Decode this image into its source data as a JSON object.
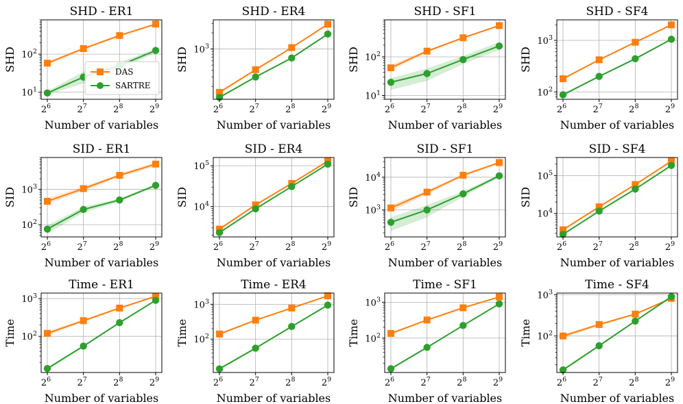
{
  "legend": {
    "placement": "center-right",
    "entries": [
      {
        "name": "DAS",
        "color": "#ff7f0e",
        "marker": "square"
      },
      {
        "name": "SARTRE",
        "color": "#2ca02c",
        "marker": "circle"
      }
    ]
  },
  "chart_data": [
    {
      "id": "shd-er1",
      "type": "line",
      "title": "SHD - ER1",
      "xlabel": "Number of variables",
      "ylabel": "SHD",
      "yscale": "log",
      "x": [
        6,
        7,
        8,
        9
      ],
      "x_tick_labels": [
        "2^6",
        "2^7",
        "2^8",
        "2^9"
      ],
      "ylim": [
        6.5,
        800
      ],
      "y_ticks": [
        {
          "exp": 1,
          "label": "10^1"
        },
        {
          "exp": 2,
          "label": "10^2"
        }
      ],
      "grid": true,
      "series": [
        {
          "name": "DAS",
          "values": [
            58,
            140,
            310,
            620
          ],
          "band_lower": [
            52,
            130,
            290,
            590
          ],
          "band_upper": [
            64,
            150,
            330,
            650
          ]
        },
        {
          "name": "SARTRE",
          "values": [
            9.5,
            25,
            50,
            125
          ],
          "band_lower": [
            8.5,
            17,
            40,
            110
          ],
          "band_upper": [
            10.5,
            35,
            60,
            140
          ]
        }
      ],
      "legend": true
    },
    {
      "id": "shd-er4",
      "type": "line",
      "title": "SHD - ER4",
      "xlabel": "Number of variables",
      "ylabel": "SHD",
      "yscale": "log",
      "x": [
        6,
        7,
        8,
        9
      ],
      "x_tick_labels": [
        "2^6",
        "2^7",
        "2^8",
        "2^9"
      ],
      "ylim": [
        115,
        3500
      ],
      "y_ticks": [
        {
          "exp": 3,
          "label": "10^3"
        }
      ],
      "grid": true,
      "series": [
        {
          "name": "DAS",
          "values": [
            155,
            410,
            1060,
            2900
          ],
          "band_lower": [
            148,
            395,
            1030,
            2850
          ],
          "band_upper": [
            162,
            425,
            1090,
            2950
          ]
        },
        {
          "name": "SARTRE",
          "values": [
            125,
            300,
            680,
            1900
          ],
          "band_lower": [
            120,
            290,
            665,
            1870
          ],
          "band_upper": [
            130,
            310,
            695,
            1930
          ]
        }
      ]
    },
    {
      "id": "shd-sf1",
      "type": "line",
      "title": "SHD - SF1",
      "xlabel": "Number of variables",
      "ylabel": "SHD",
      "yscale": "log",
      "x": [
        6,
        7,
        8,
        9
      ],
      "x_tick_labels": [
        "2^6",
        "2^7",
        "2^8",
        "2^9"
      ],
      "ylim": [
        8,
        900
      ],
      "y_ticks": [
        {
          "exp": 1,
          "label": "10^1"
        },
        {
          "exp": 2,
          "label": "10^2"
        }
      ],
      "grid": true,
      "series": [
        {
          "name": "DAS",
          "values": [
            52,
            140,
            310,
            640
          ],
          "band_lower": [
            44,
            130,
            295,
            615
          ],
          "band_upper": [
            62,
            150,
            325,
            665
          ]
        },
        {
          "name": "SARTRE",
          "values": [
            22,
            37,
            85,
            190
          ],
          "band_lower": [
            14,
            24,
            65,
            150
          ],
          "band_upper": [
            28,
            50,
            105,
            240
          ]
        }
      ]
    },
    {
      "id": "shd-sf4",
      "type": "line",
      "title": "SHD - SF4",
      "xlabel": "Number of variables",
      "ylabel": "SHD",
      "yscale": "log",
      "x": [
        6,
        7,
        8,
        9
      ],
      "x_tick_labels": [
        "2^6",
        "2^7",
        "2^8",
        "2^9"
      ],
      "ylim": [
        72,
        2500
      ],
      "y_ticks": [
        {
          "exp": 2,
          "label": "10^2"
        },
        {
          "exp": 3,
          "label": "10^3"
        }
      ],
      "grid": true,
      "series": [
        {
          "name": "DAS",
          "values": [
            180,
            420,
            920,
            2000
          ],
          "band_lower": [
            172,
            405,
            895,
            1960
          ],
          "band_upper": [
            188,
            435,
            945,
            2040
          ]
        },
        {
          "name": "SARTRE",
          "values": [
            88,
            200,
            440,
            1050
          ],
          "band_lower": [
            84,
            192,
            425,
            1020
          ],
          "band_upper": [
            92,
            208,
            455,
            1080
          ]
        }
      ]
    },
    {
      "id": "sid-er1",
      "type": "line",
      "title": "SID - ER1",
      "xlabel": "Number of variables",
      "ylabel": "SID",
      "yscale": "log",
      "x": [
        6,
        7,
        8,
        9
      ],
      "x_tick_labels": [
        "2^6",
        "2^7",
        "2^8",
        "2^9"
      ],
      "ylim": [
        45,
        8000
      ],
      "y_ticks": [
        {
          "exp": 2,
          "label": "10^2"
        },
        {
          "exp": 3,
          "label": "10^3"
        }
      ],
      "grid": true,
      "series": [
        {
          "name": "DAS",
          "values": [
            460,
            1050,
            2500,
            5200
          ],
          "band_lower": [
            380,
            920,
            2250,
            4500
          ],
          "band_upper": [
            560,
            1200,
            2800,
            6000
          ]
        },
        {
          "name": "SARTRE",
          "values": [
            75,
            270,
            500,
            1300
          ],
          "band_lower": [
            55,
            220,
            450,
            1200
          ],
          "band_upper": [
            95,
            320,
            550,
            1400
          ]
        }
      ]
    },
    {
      "id": "sid-er4",
      "type": "line",
      "title": "SID - ER4",
      "xlabel": "Number of variables",
      "ylabel": "SID",
      "yscale": "log",
      "x": [
        6,
        7,
        8,
        9
      ],
      "x_tick_labels": [
        "2^6",
        "2^7",
        "2^8",
        "2^9"
      ],
      "ylim": [
        1800,
        160000
      ],
      "y_ticks": [
        {
          "exp": 4,
          "label": "10^4"
        },
        {
          "exp": 5,
          "label": "10^5"
        }
      ],
      "grid": true,
      "series": [
        {
          "name": "DAS",
          "values": [
            2800,
            11000,
            37000,
            130000
          ],
          "band_lower": [
            2600,
            10500,
            35500,
            126000
          ],
          "band_upper": [
            3000,
            11500,
            38500,
            134000
          ]
        },
        {
          "name": "SARTRE",
          "values": [
            2300,
            8800,
            31000,
            110000
          ],
          "band_lower": [
            2150,
            8500,
            30000,
            107000
          ],
          "band_upper": [
            2450,
            9100,
            32000,
            113000
          ]
        }
      ]
    },
    {
      "id": "sid-sf1",
      "type": "line",
      "title": "SID - SF1",
      "xlabel": "Number of variables",
      "ylabel": "SID",
      "yscale": "log",
      "x": [
        6,
        7,
        8,
        9
      ],
      "x_tick_labels": [
        "2^6",
        "2^7",
        "2^8",
        "2^9"
      ],
      "ylim": [
        150,
        40000
      ],
      "y_ticks": [
        {
          "exp": 3,
          "label": "10^3"
        },
        {
          "exp": 4,
          "label": "10^4"
        }
      ],
      "grid": true,
      "series": [
        {
          "name": "DAS",
          "values": [
            1150,
            3500,
            11500,
            28000
          ],
          "band_lower": [
            900,
            3000,
            10500,
            26000
          ],
          "band_upper": [
            1400,
            4000,
            12500,
            30000
          ]
        },
        {
          "name": "SARTRE",
          "values": [
            420,
            1000,
            3100,
            11000
          ],
          "band_lower": [
            230,
            600,
            2500,
            10000
          ],
          "band_upper": [
            600,
            1400,
            3700,
            12000
          ]
        }
      ]
    },
    {
      "id": "sid-sf4",
      "type": "line",
      "title": "SID - SF4",
      "xlabel": "Number of variables",
      "ylabel": "SID",
      "yscale": "log",
      "x": [
        6,
        7,
        8,
        9
      ],
      "x_tick_labels": [
        "2^6",
        "2^7",
        "2^8",
        "2^9"
      ],
      "ylim": [
        2400,
        300000
      ],
      "y_ticks": [
        {
          "exp": 4,
          "label": "10^4"
        },
        {
          "exp": 5,
          "label": "10^5"
        }
      ],
      "grid": true,
      "series": [
        {
          "name": "DAS",
          "values": [
            3700,
            15000,
            58000,
            240000
          ],
          "band_lower": [
            3500,
            14400,
            56000,
            233000
          ],
          "band_upper": [
            3900,
            15600,
            60000,
            247000
          ]
        },
        {
          "name": "SARTRE",
          "values": [
            2800,
            11500,
            44000,
            185000
          ],
          "band_lower": [
            2650,
            11100,
            42500,
            180000
          ],
          "band_upper": [
            2950,
            11900,
            45500,
            190000
          ]
        }
      ]
    },
    {
      "id": "time-er1",
      "type": "line",
      "title": "Time - ER1",
      "xlabel": "Number of variables",
      "ylabel": "Time",
      "yscale": "log",
      "x": [
        6,
        7,
        8,
        9
      ],
      "x_tick_labels": [
        "2^6",
        "2^7",
        "2^8",
        "2^9"
      ],
      "ylim": [
        11,
        1400
      ],
      "y_ticks": [
        {
          "exp": 2,
          "label": "10^2"
        },
        {
          "exp": 3,
          "label": "10^3"
        }
      ],
      "grid": true,
      "series": [
        {
          "name": "DAS",
          "values": [
            120,
            260,
            560,
            1150
          ],
          "band_lower": [
            105,
            240,
            530,
            1100
          ],
          "band_upper": [
            135,
            280,
            590,
            1200
          ]
        },
        {
          "name": "SARTRE",
          "values": [
            14,
            55,
            230,
            900
          ],
          "band_lower": [
            13,
            52,
            220,
            870
          ],
          "band_upper": [
            15,
            58,
            240,
            930
          ]
        }
      ]
    },
    {
      "id": "time-er4",
      "type": "line",
      "title": "Time - ER4",
      "xlabel": "Number of variables",
      "ylabel": "Time",
      "yscale": "log",
      "x": [
        6,
        7,
        8,
        9
      ],
      "x_tick_labels": [
        "2^6",
        "2^7",
        "2^8",
        "2^9"
      ],
      "ylim": [
        11,
        2100
      ],
      "y_ticks": [
        {
          "exp": 2,
          "label": "10^2"
        },
        {
          "exp": 3,
          "label": "10^3"
        }
      ],
      "grid": true,
      "series": [
        {
          "name": "DAS",
          "values": [
            140,
            350,
            780,
            1750
          ],
          "band_lower": [
            130,
            335,
            750,
            1700
          ],
          "band_upper": [
            150,
            365,
            810,
            1800
          ]
        },
        {
          "name": "SARTRE",
          "values": [
            14,
            55,
            230,
            950
          ],
          "band_lower": [
            13,
            52,
            220,
            920
          ],
          "band_upper": [
            15,
            58,
            240,
            980
          ]
        }
      ]
    },
    {
      "id": "time-sf1",
      "type": "line",
      "title": "Time - SF1",
      "xlabel": "Number of variables",
      "ylabel": "Time",
      "yscale": "log",
      "x": [
        6,
        7,
        8,
        9
      ],
      "x_tick_labels": [
        "2^6",
        "2^7",
        "2^8",
        "2^9"
      ],
      "ylim": [
        11,
        1800
      ],
      "y_ticks": [
        {
          "exp": 2,
          "label": "10^2"
        },
        {
          "exp": 3,
          "label": "10^3"
        }
      ],
      "grid": true,
      "series": [
        {
          "name": "DAS",
          "values": [
            135,
            320,
            700,
            1400
          ],
          "band_lower": [
            125,
            305,
            670,
            1350
          ],
          "band_upper": [
            145,
            335,
            730,
            1450
          ]
        },
        {
          "name": "SARTRE",
          "values": [
            14,
            55,
            225,
            900
          ],
          "band_lower": [
            13,
            52,
            215,
            870
          ],
          "band_upper": [
            15,
            58,
            235,
            930
          ]
        }
      ]
    },
    {
      "id": "time-sf4",
      "type": "line",
      "title": "Time - SF4",
      "xlabel": "Number of variables",
      "ylabel": "Time",
      "yscale": "log",
      "x": [
        6,
        7,
        8,
        9
      ],
      "x_tick_labels": [
        "2^6",
        "2^7",
        "2^8",
        "2^9"
      ],
      "ylim": [
        13,
        1100
      ],
      "y_ticks": [
        {
          "exp": 2,
          "label": "10^2"
        },
        {
          "exp": 3,
          "label": "10^3"
        }
      ],
      "grid": true,
      "series": [
        {
          "name": "DAS",
          "values": [
            100,
            190,
            340,
            820
          ],
          "band_lower": [
            88,
            178,
            325,
            790
          ],
          "band_upper": [
            112,
            202,
            355,
            850
          ]
        },
        {
          "name": "SARTRE",
          "values": [
            15,
            58,
            230,
            900
          ],
          "band_lower": [
            14,
            55,
            220,
            870
          ],
          "band_upper": [
            16,
            61,
            240,
            930
          ]
        }
      ]
    }
  ]
}
